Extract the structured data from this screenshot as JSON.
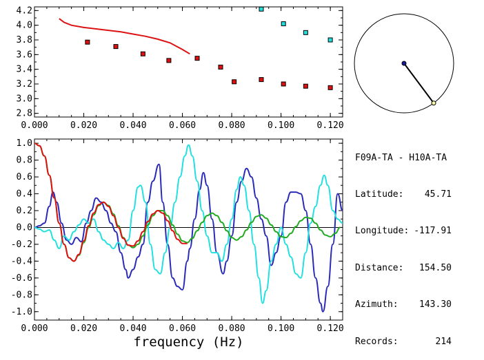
{
  "station_pair": "F09A-TA - H10A-TA",
  "info": [
    {
      "label": "Latitude:",
      "value": "45.71"
    },
    {
      "label": "Longitude:",
      "value": "-117.91"
    },
    {
      "label": "Distance:",
      "value": "154.50"
    },
    {
      "label": "Azimuth:",
      "value": "143.30"
    },
    {
      "label": "Records:",
      "value": "214"
    }
  ],
  "compass": {
    "azimuth_deg": 143.3
  },
  "chart_data": [
    {
      "type": "scatter",
      "xlim": [
        0.0,
        0.125
      ],
      "ylim": [
        2.75,
        4.25
      ],
      "x_ticks": [
        "0.000",
        "0.020",
        "0.040",
        "0.060",
        "0.080",
        "0.100",
        "0.120"
      ],
      "y_ticks": [
        "2.8",
        "3.0",
        "3.2",
        "3.4",
        "3.6",
        "3.8",
        "4.0",
        "4.2"
      ],
      "colors": {
        "red": "#dd1111",
        "cyan": "#22dddd",
        "line": "#dd1111"
      },
      "series": [
        {
          "color": "red",
          "marker": "square",
          "points": [
            [
              0.0215,
              3.77
            ],
            [
              0.033,
              3.71
            ],
            [
              0.044,
              3.61
            ],
            [
              0.0545,
              3.52
            ],
            [
              0.066,
              3.55
            ],
            [
              0.0755,
              3.43
            ],
            [
              0.081,
              3.23
            ],
            [
              0.092,
              3.26
            ],
            [
              0.101,
              3.2
            ],
            [
              0.11,
              3.17
            ],
            [
              0.12,
              3.15
            ]
          ]
        },
        {
          "color": "cyan",
          "marker": "square",
          "points": [
            [
              0.092,
              4.22
            ],
            [
              0.101,
              4.02
            ],
            [
              0.11,
              3.9
            ],
            [
              0.12,
              3.8
            ]
          ]
        },
        {
          "color": "line",
          "marker": "line",
          "points": [
            [
              0.01,
              4.09
            ],
            [
              0.012,
              4.04
            ],
            [
              0.015,
              4.0
            ],
            [
              0.02,
              3.97
            ],
            [
              0.025,
              3.95
            ],
            [
              0.03,
              3.93
            ],
            [
              0.035,
              3.91
            ],
            [
              0.04,
              3.88
            ],
            [
              0.045,
              3.85
            ],
            [
              0.05,
              3.81
            ],
            [
              0.055,
              3.76
            ],
            [
              0.06,
              3.67
            ],
            [
              0.063,
              3.61
            ]
          ]
        }
      ]
    },
    {
      "type": "line",
      "xlabel": "frequency (Hz)",
      "xlim": [
        0.0,
        0.125
      ],
      "ylim": [
        -1.1,
        1.05
      ],
      "x_ticks": [
        "0.000",
        "0.020",
        "0.040",
        "0.060",
        "0.080",
        "0.100",
        "0.120"
      ],
      "y_ticks": [
        "1.0",
        "0.8",
        "0.6",
        "0.4",
        "0.2",
        "0.0",
        "-0.2",
        "-0.4",
        "-0.6",
        "-0.8",
        "-1.0"
      ],
      "series": [
        {
          "color": "#2a2ab8",
          "points": [
            [
              0,
              0
            ],
            [
              0.002,
              0.02
            ],
            [
              0.004,
              0.05
            ],
            [
              0.006,
              0.25
            ],
            [
              0.0075,
              0.42
            ],
            [
              0.009,
              0.3
            ],
            [
              0.011,
              0.05
            ],
            [
              0.013,
              -0.15
            ],
            [
              0.015,
              -0.2
            ],
            [
              0.017,
              -0.12
            ],
            [
              0.019,
              -0.17
            ],
            [
              0.021,
              0.05
            ],
            [
              0.023,
              0.2
            ],
            [
              0.025,
              0.35
            ],
            [
              0.027,
              0.3
            ],
            [
              0.029,
              0.2
            ],
            [
              0.031,
              0.05
            ],
            [
              0.033,
              -0.05
            ],
            [
              0.035,
              -0.3
            ],
            [
              0.037,
              -0.5
            ],
            [
              0.038,
              -0.6
            ],
            [
              0.04,
              -0.5
            ],
            [
              0.042,
              -0.35
            ],
            [
              0.044,
              -0.2
            ],
            [
              0.046,
              0.3
            ],
            [
              0.048,
              0.55
            ],
            [
              0.0505,
              0.75
            ],
            [
              0.052,
              0.3
            ],
            [
              0.054,
              -0.2
            ],
            [
              0.056,
              -0.6
            ],
            [
              0.058,
              -0.7
            ],
            [
              0.06,
              -0.74
            ],
            [
              0.062,
              -0.4
            ],
            [
              0.063,
              -0.25
            ],
            [
              0.065,
              0.1
            ],
            [
              0.067,
              0.45
            ],
            [
              0.0685,
              0.65
            ],
            [
              0.07,
              0.5
            ],
            [
              0.072,
              0.1
            ],
            [
              0.074,
              -0.3
            ],
            [
              0.0765,
              -0.55
            ],
            [
              0.078,
              -0.4
            ],
            [
              0.08,
              -0.1
            ],
            [
              0.082,
              0.3
            ],
            [
              0.084,
              0.55
            ],
            [
              0.086,
              0.7
            ],
            [
              0.088,
              0.6
            ],
            [
              0.09,
              0.35
            ],
            [
              0.092,
              0.1
            ],
            [
              0.094,
              -0.1
            ],
            [
              0.096,
              -0.45
            ],
            [
              0.098,
              -0.3
            ],
            [
              0.1,
              -0.1
            ],
            [
              0.102,
              0.3
            ],
            [
              0.104,
              0.42
            ],
            [
              0.106,
              0.42
            ],
            [
              0.108,
              0.4
            ],
            [
              0.11,
              0.2
            ],
            [
              0.112,
              -0.2
            ],
            [
              0.114,
              -0.6
            ],
            [
              0.116,
              -0.9
            ],
            [
              0.117,
              -1.0
            ],
            [
              0.119,
              -0.7
            ],
            [
              0.121,
              -0.2
            ],
            [
              0.123,
              0.4
            ],
            [
              0.125,
              0.2
            ]
          ]
        },
        {
          "color": "#22e0e0",
          "points": [
            [
              0,
              0.0
            ],
            [
              0.002,
              -0.02
            ],
            [
              0.004,
              -0.05
            ],
            [
              0.006,
              -0.03
            ],
            [
              0.008,
              -0.15
            ],
            [
              0.01,
              -0.25
            ],
            [
              0.012,
              -0.1
            ],
            [
              0.014,
              -0.15
            ],
            [
              0.016,
              -0.05
            ],
            [
              0.018,
              0.03
            ],
            [
              0.02,
              0.1
            ],
            [
              0.022,
              0.05
            ],
            [
              0.024,
              0.1
            ],
            [
              0.026,
              -0.05
            ],
            [
              0.028,
              -0.15
            ],
            [
              0.03,
              -0.2
            ],
            [
              0.032,
              -0.25
            ],
            [
              0.034,
              -0.18
            ],
            [
              0.036,
              -0.25
            ],
            [
              0.038,
              -0.15
            ],
            [
              0.04,
              0.2
            ],
            [
              0.042,
              0.48
            ],
            [
              0.043,
              0.5
            ],
            [
              0.045,
              0.3
            ],
            [
              0.047,
              -0.2
            ],
            [
              0.049,
              -0.5
            ],
            [
              0.051,
              -0.55
            ],
            [
              0.053,
              -0.3
            ],
            [
              0.055,
              0.0
            ],
            [
              0.057,
              0.3
            ],
            [
              0.059,
              0.6
            ],
            [
              0.061,
              0.85
            ],
            [
              0.0625,
              0.98
            ],
            [
              0.064,
              0.85
            ],
            [
              0.066,
              0.55
            ],
            [
              0.068,
              0.2
            ],
            [
              0.07,
              -0.1
            ],
            [
              0.072,
              -0.3
            ],
            [
              0.074,
              -0.3
            ],
            [
              0.076,
              -0.4
            ],
            [
              0.078,
              -0.2
            ],
            [
              0.08,
              0.1
            ],
            [
              0.082,
              0.45
            ],
            [
              0.0835,
              0.6
            ],
            [
              0.085,
              0.5
            ],
            [
              0.087,
              0.2
            ],
            [
              0.089,
              -0.2
            ],
            [
              0.091,
              -0.6
            ],
            [
              0.0925,
              -0.9
            ],
            [
              0.094,
              -0.75
            ],
            [
              0.096,
              -0.4
            ],
            [
              0.098,
              -0.2
            ],
            [
              0.1,
              0.0
            ],
            [
              0.102,
              -0.2
            ],
            [
              0.104,
              -0.35
            ],
            [
              0.106,
              -0.55
            ],
            [
              0.108,
              -0.6
            ],
            [
              0.11,
              -0.3
            ],
            [
              0.112,
              0.05
            ],
            [
              0.114,
              0.25
            ],
            [
              0.116,
              0.5
            ],
            [
              0.1175,
              0.62
            ],
            [
              0.119,
              0.5
            ],
            [
              0.121,
              0.2
            ],
            [
              0.123,
              0.1
            ],
            [
              0.125,
              0.05
            ]
          ]
        },
        {
          "color": "#22aa22",
          "points": [
            [
              0,
              1.0
            ],
            [
              0.002,
              0.97
            ],
            [
              0.004,
              0.85
            ],
            [
              0.006,
              0.62
            ],
            [
              0.008,
              0.35
            ],
            [
              0.01,
              0.05
            ],
            [
              0.012,
              -0.2
            ],
            [
              0.014,
              -0.36
            ],
            [
              0.016,
              -0.4
            ],
            [
              0.018,
              -0.33
            ],
            [
              0.02,
              -0.18
            ],
            [
              0.022,
              0.0
            ],
            [
              0.024,
              0.15
            ],
            [
              0.026,
              0.26
            ],
            [
              0.028,
              0.3
            ],
            [
              0.03,
              0.26
            ],
            [
              0.032,
              0.16
            ],
            [
              0.034,
              0.02
            ],
            [
              0.036,
              -0.12
            ],
            [
              0.038,
              -0.21
            ],
            [
              0.04,
              -0.24
            ],
            [
              0.042,
              -0.2
            ],
            [
              0.044,
              -0.1
            ],
            [
              0.046,
              0.03
            ],
            [
              0.048,
              0.14
            ],
            [
              0.05,
              0.2
            ],
            [
              0.052,
              0.2
            ],
            [
              0.054,
              0.14
            ],
            [
              0.056,
              0.03
            ],
            [
              0.058,
              -0.08
            ],
            [
              0.06,
              -0.16
            ],
            [
              0.062,
              -0.18
            ],
            [
              0.064,
              -0.13
            ],
            [
              0.066,
              -0.04
            ],
            [
              0.068,
              0.06
            ],
            [
              0.07,
              0.14
            ],
            [
              0.072,
              0.17
            ],
            [
              0.074,
              0.14
            ],
            [
              0.076,
              0.06
            ],
            [
              0.078,
              -0.04
            ],
            [
              0.08,
              -0.12
            ],
            [
              0.082,
              -0.15
            ],
            [
              0.084,
              -0.11
            ],
            [
              0.086,
              -0.03
            ],
            [
              0.088,
              0.06
            ],
            [
              0.09,
              0.13
            ],
            [
              0.092,
              0.15
            ],
            [
              0.094,
              0.11
            ],
            [
              0.096,
              0.03
            ],
            [
              0.098,
              -0.05
            ],
            [
              0.1,
              -0.11
            ],
            [
              0.102,
              -0.12
            ],
            [
              0.104,
              -0.07
            ],
            [
              0.106,
              0.01
            ],
            [
              0.108,
              0.08
            ],
            [
              0.11,
              0.12
            ],
            [
              0.112,
              0.11
            ],
            [
              0.114,
              0.05
            ],
            [
              0.116,
              -0.03
            ],
            [
              0.118,
              -0.09
            ],
            [
              0.12,
              -0.11
            ],
            [
              0.122,
              -0.07
            ],
            [
              0.124,
              0.0
            ]
          ]
        },
        {
          "color": "#dd1111",
          "points": [
            [
              0,
              1.0
            ],
            [
              0.002,
              0.97
            ],
            [
              0.004,
              0.85
            ],
            [
              0.006,
              0.62
            ],
            [
              0.008,
              0.35
            ],
            [
              0.01,
              0.05
            ],
            [
              0.012,
              -0.2
            ],
            [
              0.014,
              -0.36
            ],
            [
              0.016,
              -0.4
            ],
            [
              0.018,
              -0.32
            ],
            [
              0.02,
              -0.16
            ],
            [
              0.022,
              0.02
            ],
            [
              0.024,
              0.17
            ],
            [
              0.026,
              0.27
            ],
            [
              0.028,
              0.3
            ],
            [
              0.03,
              0.25
            ],
            [
              0.032,
              0.14
            ],
            [
              0.034,
              0.0
            ],
            [
              0.036,
              -0.13
            ],
            [
              0.038,
              -0.21
            ],
            [
              0.04,
              -0.22
            ],
            [
              0.042,
              -0.16
            ],
            [
              0.044,
              -0.05
            ],
            [
              0.046,
              0.07
            ],
            [
              0.048,
              0.16
            ],
            [
              0.05,
              0.2
            ],
            [
              0.052,
              0.17
            ],
            [
              0.054,
              0.08
            ],
            [
              0.056,
              -0.04
            ],
            [
              0.058,
              -0.14
            ],
            [
              0.06,
              -0.19
            ],
            [
              0.062,
              -0.19
            ]
          ]
        }
      ]
    }
  ]
}
